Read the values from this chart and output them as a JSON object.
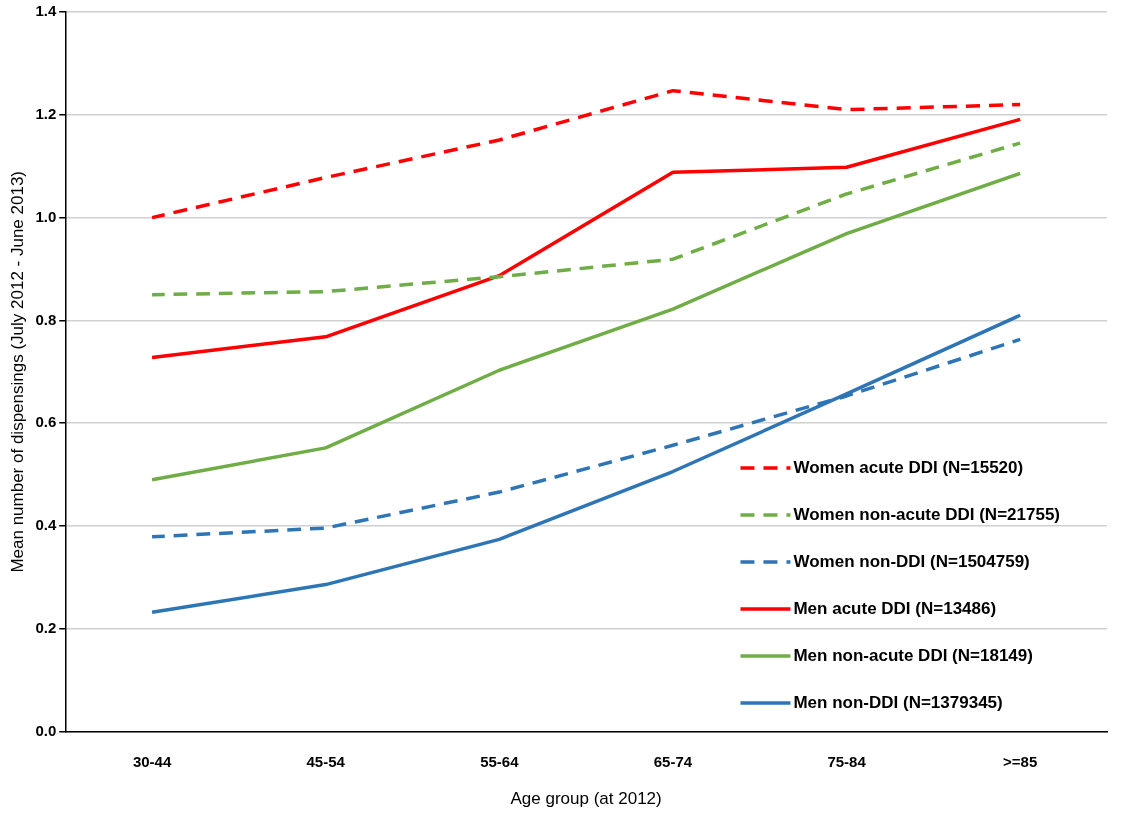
{
  "chart_data": {
    "type": "line",
    "xlabel": "Age group (at 2012)",
    "ylabel": "Mean number of dispensings (July 2012 - June 2013)",
    "categories": [
      "30-44",
      "45-54",
      "55-64",
      "65-74",
      "75-84",
      ">=85"
    ],
    "ylim": [
      0,
      1.4
    ],
    "yticks": [
      {
        "value": 0,
        "label": "0.0"
      },
      0.2,
      0.4,
      0.6,
      0.8,
      {
        "value": 1,
        "label": "1.0"
      },
      1.2,
      1.4
    ],
    "grid": "y",
    "legend": "bottom right",
    "marker": "none",
    "series": [
      {
        "name": "Women acute DDI (N=15520)",
        "color": "#ff0000",
        "line_style": "dashed",
        "values": [
          1.0,
          1.078,
          1.151,
          1.247,
          1.21,
          1.22
        ]
      },
      {
        "name": "Women non-acute DDI (N=21755)",
        "color": "#70ad47",
        "line_style": "dashed",
        "values": [
          0.85,
          0.856,
          0.885,
          0.919,
          1.046,
          1.145
        ]
      },
      {
        "name": "Women non-DDI (N=1504759)",
        "color": "#2e75b6",
        "line_style": "dashed",
        "values": [
          0.379,
          0.396,
          0.466,
          0.557,
          0.653,
          0.763
        ]
      },
      {
        "name": "Men acute DDI (N=13486)",
        "color": "#ff0000",
        "line_style": "solid",
        "values": [
          0.728,
          0.768,
          0.887,
          1.088,
          1.098,
          1.191
        ]
      },
      {
        "name": "Men non-acute DDI (N=18149)",
        "color": "#70ad47",
        "line_style": "solid",
        "values": [
          0.49,
          0.552,
          0.703,
          0.822,
          0.969,
          1.086
        ]
      },
      {
        "name": "Men non-DDI (N=1379345)",
        "color": "#2e75b6",
        "line_style": "solid",
        "values": [
          0.232,
          0.286,
          0.374,
          0.506,
          0.657,
          0.81
        ]
      }
    ]
  }
}
